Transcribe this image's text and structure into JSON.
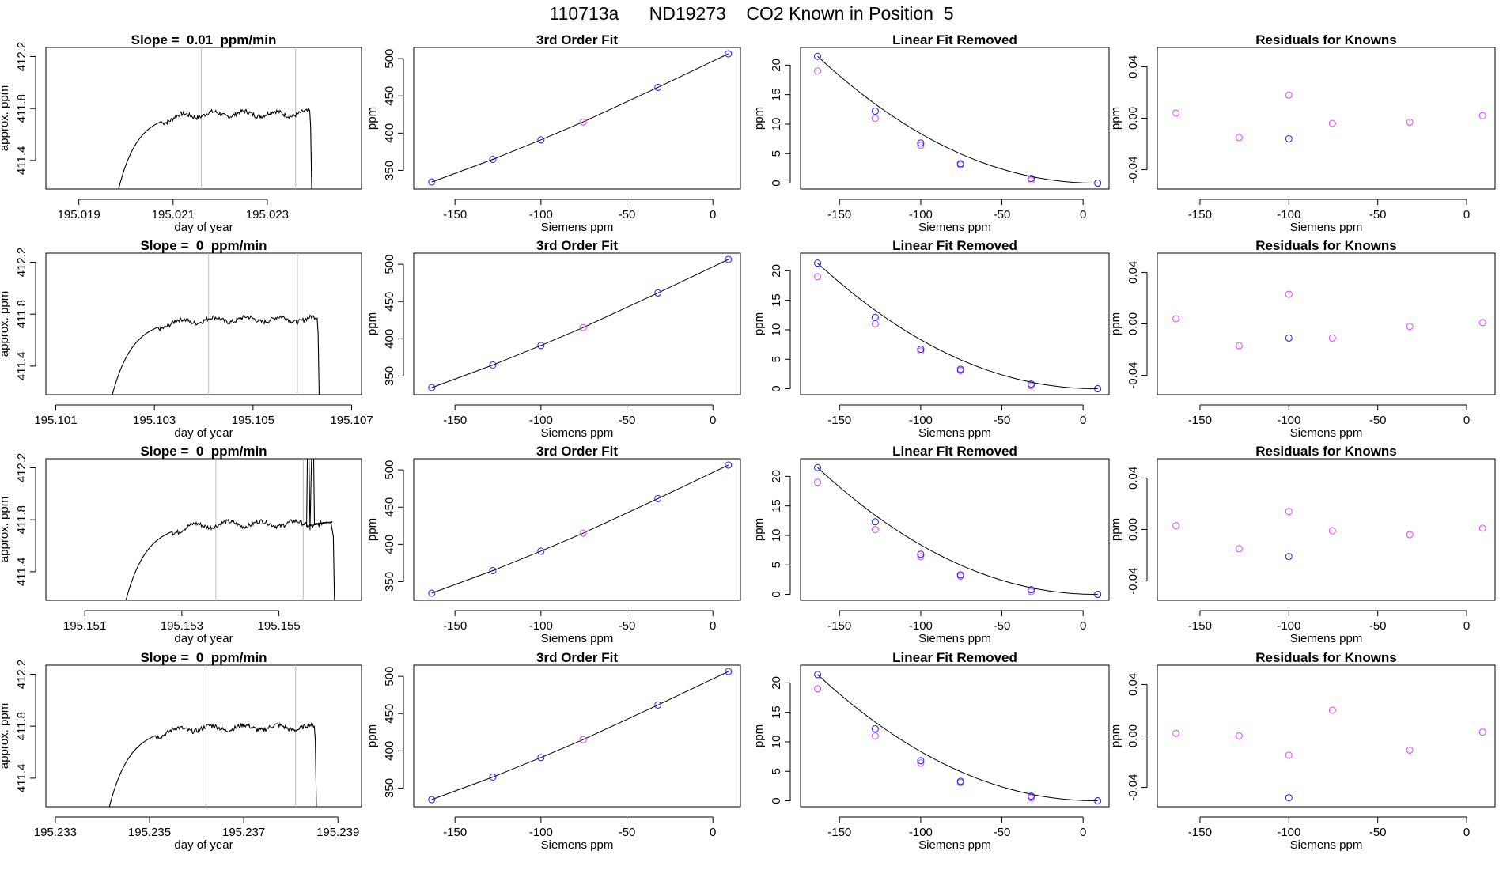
{
  "page": {
    "title_prefix": "110713a",
    "title_cylinder": "ND19273",
    "title_suffix": "CO2 Known in Position  5"
  },
  "colors": {
    "axis": "#000000",
    "trace": "#000000",
    "vline": "#bfbfbf",
    "point_blue": "#1a1aff",
    "point_magenta": "#e040fb",
    "fit_curve": "#000000"
  },
  "chart_data": [
    {
      "type": "line",
      "panel": "trace",
      "row": 1,
      "title": "Slope =  0.01  ppm/min",
      "xlabel": "day of year",
      "ylabel": "approx. ppm",
      "xlim": [
        195.0183,
        195.025
      ],
      "ylim": [
        411.18,
        412.27
      ],
      "xticks": [
        195.019,
        195.021,
        195.023
      ],
      "xtick_labels": [
        "195.019",
        "195.021",
        "195.023"
      ],
      "yticks": [
        411.4,
        411.8,
        412.2
      ],
      "ytick_labels": [
        "411.4",
        "411.8",
        "412.2"
      ],
      "vlines": [
        195.0216,
        195.0236
      ],
      "rise_start": 195.0197,
      "plateau": 411.76,
      "drop_end": 195.0239,
      "spike": null
    },
    {
      "type": "scatter",
      "panel": "fit",
      "row": 1,
      "title": "3rd Order Fit",
      "xlabel": "Siemens ppm",
      "ylabel": "ppm",
      "xlim": [
        -174,
        16
      ],
      "ylim": [
        325,
        515
      ],
      "xticks": [
        -150,
        -100,
        -50,
        0
      ],
      "xtick_labels": [
        "-150",
        "-100",
        "-50",
        "0"
      ],
      "yticks": [
        350,
        400,
        450,
        500
      ],
      "ytick_labels": [
        "350",
        "400",
        "450",
        "500"
      ],
      "points_blue": [
        [
          -163.5,
          334.5
        ],
        [
          -128,
          364.8
        ],
        [
          -100,
          391
        ],
        [
          -32,
          461.5
        ],
        [
          9,
          506.5
        ]
      ],
      "points_magenta": [
        [
          -75.5,
          415
        ]
      ]
    },
    {
      "type": "scatter",
      "panel": "linear_removed",
      "row": 1,
      "title": "Linear Fit Removed",
      "xlabel": "Siemens ppm",
      "ylabel": "ppm",
      "xlim": [
        -174,
        16
      ],
      "ylim": [
        -1,
        23
      ],
      "xticks": [
        -150,
        -100,
        -50,
        0
      ],
      "xtick_labels": [
        "-150",
        "-100",
        "-50",
        "0"
      ],
      "yticks": [
        0,
        5,
        10,
        15,
        20
      ],
      "ytick_labels": [
        "0",
        "5",
        "10",
        "15",
        "20"
      ],
      "points_blue": [
        [
          -163.5,
          21.5
        ],
        [
          -128,
          12.2
        ],
        [
          -100,
          6.8
        ],
        [
          -75.5,
          3.3
        ],
        [
          -32,
          0.8
        ],
        [
          9,
          0
        ]
      ],
      "points_magenta": [
        [
          -163.5,
          19
        ],
        [
          -128,
          11
        ],
        [
          -100,
          6.4
        ],
        [
          -75.5,
          3.1
        ],
        [
          -32,
          0.5
        ],
        [
          9,
          0
        ]
      ],
      "curve_knots": [
        [
          -163.5,
          21.5
        ],
        [
          9,
          0
        ]
      ]
    },
    {
      "type": "scatter",
      "panel": "residuals",
      "row": 1,
      "title": "Residuals for Knowns",
      "xlabel": "Siemens ppm",
      "ylabel": "ppm",
      "xlim": [
        -174,
        16
      ],
      "ylim": [
        -0.055,
        0.055
      ],
      "xticks": [
        -150,
        -100,
        -50,
        0
      ],
      "xtick_labels": [
        "-150",
        "-100",
        "-50",
        "0"
      ],
      "yticks": [
        -0.04,
        0,
        0.04
      ],
      "ytick_labels": [
        "-0.04",
        "0.00",
        "0.04"
      ],
      "points_blue": [
        [
          -100,
          -0.016
        ]
      ],
      "points_magenta": [
        [
          -163.5,
          0.004
        ],
        [
          -128,
          -0.015
        ],
        [
          -100,
          0.018
        ],
        [
          -75.5,
          -0.004
        ],
        [
          -32,
          -0.003
        ],
        [
          9,
          0.002
        ]
      ]
    },
    {
      "type": "line",
      "panel": "trace",
      "row": 2,
      "title": "Slope =  0  ppm/min",
      "xlabel": "day of year",
      "ylabel": "approx. ppm",
      "xlim": [
        195.1008,
        195.1072
      ],
      "ylim": [
        411.18,
        412.27
      ],
      "xticks": [
        195.101,
        195.103,
        195.105,
        195.107
      ],
      "xtick_labels": [
        "195.101",
        "195.103",
        "195.105",
        "195.107"
      ],
      "yticks": [
        411.4,
        411.8,
        412.2
      ],
      "ytick_labels": [
        "411.4",
        "411.8",
        "412.2"
      ],
      "vlines": [
        195.1041,
        195.1059
      ],
      "rise_start": 195.102,
      "plateau": 411.76,
      "drop_end": 195.1063,
      "spike": null
    },
    {
      "type": "scatter",
      "panel": "fit",
      "row": 2,
      "title": "3rd Order Fit",
      "xlabel": "Siemens ppm",
      "ylabel": "ppm",
      "xlim": [
        -174,
        16
      ],
      "ylim": [
        325,
        515
      ],
      "xticks": [
        -150,
        -100,
        -50,
        0
      ],
      "xtick_labels": [
        "-150",
        "-100",
        "-50",
        "0"
      ],
      "yticks": [
        350,
        400,
        450,
        500
      ],
      "ytick_labels": [
        "350",
        "400",
        "450",
        "500"
      ],
      "points_blue": [
        [
          -163.5,
          334.5
        ],
        [
          -128,
          364.8
        ],
        [
          -100,
          391
        ],
        [
          -32,
          461.5
        ],
        [
          9,
          506.5
        ]
      ],
      "points_magenta": [
        [
          -75.5,
          415
        ]
      ]
    },
    {
      "type": "scatter",
      "panel": "linear_removed",
      "row": 2,
      "title": "Linear Fit Removed",
      "xlabel": "Siemens ppm",
      "ylabel": "ppm",
      "xlim": [
        -174,
        16
      ],
      "ylim": [
        -1,
        23
      ],
      "xticks": [
        -150,
        -100,
        -50,
        0
      ],
      "xtick_labels": [
        "-150",
        "-100",
        "-50",
        "0"
      ],
      "yticks": [
        0,
        5,
        10,
        15,
        20
      ],
      "ytick_labels": [
        "0",
        "5",
        "10",
        "15",
        "20"
      ],
      "points_blue": [
        [
          -163.5,
          21.3
        ],
        [
          -128,
          12.1
        ],
        [
          -100,
          6.7
        ],
        [
          -75.5,
          3.3
        ],
        [
          -32,
          0.8
        ],
        [
          9,
          0
        ]
      ],
      "points_magenta": [
        [
          -163.5,
          19
        ],
        [
          -128,
          11
        ],
        [
          -100,
          6.4
        ],
        [
          -75.5,
          3.1
        ],
        [
          -32,
          0.5
        ],
        [
          9,
          0
        ]
      ],
      "curve_knots": [
        [
          -163.5,
          21.3
        ],
        [
          9,
          0
        ]
      ]
    },
    {
      "type": "scatter",
      "panel": "residuals",
      "row": 2,
      "title": "Residuals for Knowns",
      "xlabel": "Siemens ppm",
      "ylabel": "ppm",
      "xlim": [
        -174,
        16
      ],
      "ylim": [
        -0.055,
        0.055
      ],
      "xticks": [
        -150,
        -100,
        -50,
        0
      ],
      "xtick_labels": [
        "-150",
        "-100",
        "-50",
        "0"
      ],
      "yticks": [
        -0.04,
        0,
        0.04
      ],
      "ytick_labels": [
        "-0.04",
        "0.00",
        "0.04"
      ],
      "points_blue": [
        [
          -100,
          -0.011
        ]
      ],
      "points_magenta": [
        [
          -163.5,
          0.004
        ],
        [
          -128,
          -0.017
        ],
        [
          -100,
          0.023
        ],
        [
          -75.5,
          -0.011
        ],
        [
          -32,
          -0.002
        ],
        [
          9,
          0.001
        ]
      ]
    },
    {
      "type": "line",
      "panel": "trace",
      "row": 3,
      "title": "Slope =  0  ppm/min",
      "xlabel": "day of year",
      "ylabel": "approx. ppm",
      "xlim": [
        195.1502,
        195.1567
      ],
      "ylim": [
        411.18,
        412.27
      ],
      "xticks": [
        195.151,
        195.153,
        195.155
      ],
      "xtick_labels": [
        "195.151",
        "195.153",
        "195.155"
      ],
      "yticks": [
        411.4,
        411.8,
        412.2
      ],
      "ytick_labels": [
        "411.4",
        "411.8",
        "412.2"
      ],
      "vlines": [
        195.1537,
        195.1555
      ],
      "rise_start": 195.1517,
      "plateau": 411.77,
      "drop_end": 195.1561,
      "spike": 195.1556
    },
    {
      "type": "scatter",
      "panel": "fit",
      "row": 3,
      "title": "3rd Order Fit",
      "xlabel": "Siemens ppm",
      "ylabel": "ppm",
      "xlim": [
        -174,
        16
      ],
      "ylim": [
        325,
        515
      ],
      "xticks": [
        -150,
        -100,
        -50,
        0
      ],
      "xtick_labels": [
        "-150",
        "-100",
        "-50",
        "0"
      ],
      "yticks": [
        350,
        400,
        450,
        500
      ],
      "ytick_labels": [
        "350",
        "400",
        "450",
        "500"
      ],
      "points_blue": [
        [
          -163.5,
          334.5
        ],
        [
          -128,
          364.8
        ],
        [
          -100,
          391
        ],
        [
          -32,
          461.5
        ],
        [
          9,
          506.5
        ]
      ],
      "points_magenta": [
        [
          -75.5,
          415
        ]
      ]
    },
    {
      "type": "scatter",
      "panel": "linear_removed",
      "row": 3,
      "title": "Linear Fit Removed",
      "xlabel": "Siemens ppm",
      "ylabel": "ppm",
      "xlim": [
        -174,
        16
      ],
      "ylim": [
        -1,
        23
      ],
      "xticks": [
        -150,
        -100,
        -50,
        0
      ],
      "xtick_labels": [
        "-150",
        "-100",
        "-50",
        "0"
      ],
      "yticks": [
        0,
        5,
        10,
        15,
        20
      ],
      "ytick_labels": [
        "0",
        "5",
        "10",
        "15",
        "20"
      ],
      "points_blue": [
        [
          -163.5,
          21.5
        ],
        [
          -128,
          12.3
        ],
        [
          -100,
          6.8
        ],
        [
          -75.5,
          3.3
        ],
        [
          -32,
          0.8
        ],
        [
          9,
          0
        ]
      ],
      "points_magenta": [
        [
          -163.5,
          19
        ],
        [
          -128,
          11
        ],
        [
          -100,
          6.4
        ],
        [
          -75.5,
          3.1
        ],
        [
          -32,
          0.5
        ],
        [
          9,
          0
        ]
      ],
      "curve_knots": [
        [
          -163.5,
          21.5
        ],
        [
          9,
          0
        ]
      ]
    },
    {
      "type": "scatter",
      "panel": "residuals",
      "row": 3,
      "title": "Residuals for Knowns",
      "xlabel": "Siemens ppm",
      "ylabel": "ppm",
      "xlim": [
        -174,
        16
      ],
      "ylim": [
        -0.055,
        0.055
      ],
      "xticks": [
        -150,
        -100,
        -50,
        0
      ],
      "xtick_labels": [
        "-150",
        "-100",
        "-50",
        "0"
      ],
      "yticks": [
        -0.04,
        0,
        0.04
      ],
      "ytick_labels": [
        "-0.04",
        "0.00",
        "0.04"
      ],
      "points_blue": [
        [
          -100,
          -0.021
        ]
      ],
      "points_magenta": [
        [
          -163.5,
          0.003
        ],
        [
          -128,
          -0.015
        ],
        [
          -100,
          0.014
        ],
        [
          -75.5,
          -0.001
        ],
        [
          -32,
          -0.004
        ],
        [
          9,
          0.001
        ]
      ]
    },
    {
      "type": "line",
      "panel": "trace",
      "row": 4,
      "title": "Slope =  0  ppm/min",
      "xlabel": "day of year",
      "ylabel": "approx. ppm",
      "xlim": [
        195.2328,
        195.2395
      ],
      "ylim": [
        411.18,
        412.27
      ],
      "xticks": [
        195.233,
        195.235,
        195.237,
        195.239
      ],
      "xtick_labels": [
        "195.233",
        "195.235",
        "195.237",
        "195.239"
      ],
      "yticks": [
        411.4,
        411.8,
        412.2
      ],
      "ytick_labels": [
        "411.4",
        "411.8",
        "412.2"
      ],
      "vlines": [
        195.2362,
        195.2381
      ],
      "rise_start": 195.234,
      "plateau": 411.79,
      "drop_end": 195.2385,
      "spike": null
    },
    {
      "type": "scatter",
      "panel": "fit",
      "row": 4,
      "title": "3rd Order Fit",
      "xlabel": "Siemens ppm",
      "ylabel": "ppm",
      "xlim": [
        -174,
        16
      ],
      "ylim": [
        325,
        515
      ],
      "xticks": [
        -150,
        -100,
        -50,
        0
      ],
      "xtick_labels": [
        "-150",
        "-100",
        "-50",
        "0"
      ],
      "yticks": [
        350,
        400,
        450,
        500
      ],
      "ytick_labels": [
        "350",
        "400",
        "450",
        "500"
      ],
      "points_blue": [
        [
          -163.5,
          334.5
        ],
        [
          -128,
          364.8
        ],
        [
          -100,
          391
        ],
        [
          -32,
          461.5
        ],
        [
          9,
          506.5
        ]
      ],
      "points_magenta": [
        [
          -75.5,
          415
        ]
      ]
    },
    {
      "type": "scatter",
      "panel": "linear_removed",
      "row": 4,
      "title": "Linear Fit Removed",
      "xlabel": "Siemens ppm",
      "ylabel": "ppm",
      "xlim": [
        -174,
        16
      ],
      "ylim": [
        -1,
        23
      ],
      "xticks": [
        -150,
        -100,
        -50,
        0
      ],
      "xtick_labels": [
        "-150",
        "-100",
        "-50",
        "0"
      ],
      "yticks": [
        0,
        5,
        10,
        15,
        20
      ],
      "ytick_labels": [
        "0",
        "5",
        "10",
        "15",
        "20"
      ],
      "points_blue": [
        [
          -163.5,
          21.4
        ],
        [
          -128,
          12.2
        ],
        [
          -100,
          6.8
        ],
        [
          -75.5,
          3.3
        ],
        [
          -32,
          0.8
        ],
        [
          9,
          0
        ]
      ],
      "points_magenta": [
        [
          -163.5,
          19
        ],
        [
          -128,
          11
        ],
        [
          -100,
          6.4
        ],
        [
          -75.5,
          3.1
        ],
        [
          -32,
          0.5
        ],
        [
          9,
          0
        ]
      ],
      "curve_knots": [
        [
          -163.5,
          21.4
        ],
        [
          9,
          0
        ]
      ]
    },
    {
      "type": "scatter",
      "panel": "residuals",
      "row": 4,
      "title": "Residuals for Knowns",
      "xlabel": "Siemens ppm",
      "ylabel": "ppm",
      "xlim": [
        -174,
        16
      ],
      "ylim": [
        -0.055,
        0.055
      ],
      "xticks": [
        -150,
        -100,
        -50,
        0
      ],
      "xtick_labels": [
        "-150",
        "-100",
        "-50",
        "0"
      ],
      "yticks": [
        -0.04,
        0,
        0.04
      ],
      "ytick_labels": [
        "-0.04",
        "0.00",
        "0.04"
      ],
      "points_blue": [
        [
          -100,
          -0.048
        ]
      ],
      "points_magenta": [
        [
          -163.5,
          0.002
        ],
        [
          -128,
          0.0
        ],
        [
          -100,
          -0.015
        ],
        [
          -75.5,
          0.02
        ],
        [
          -32,
          -0.011
        ],
        [
          9,
          0.003
        ]
      ]
    }
  ]
}
